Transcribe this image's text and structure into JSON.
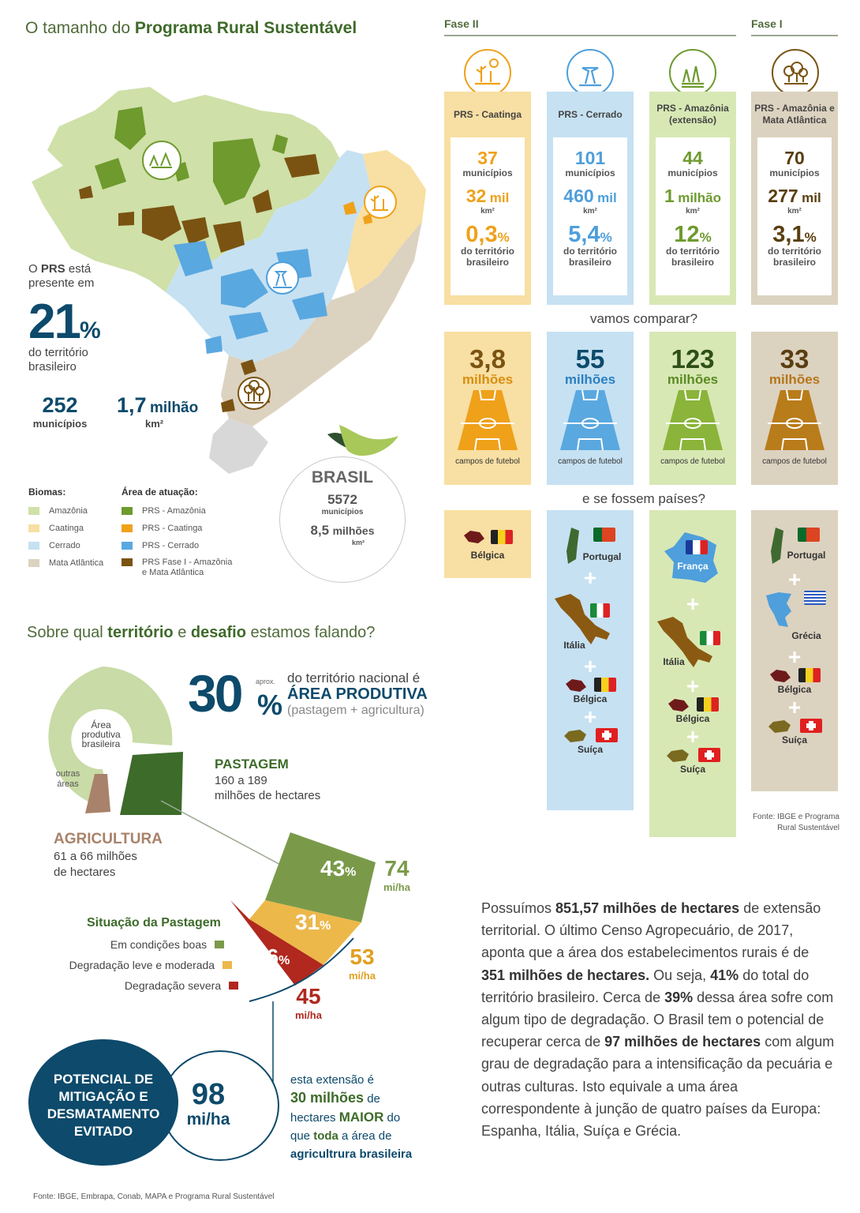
{
  "title": {
    "prefix": "O tamanho do ",
    "bold": "Programa Rural Sustentável"
  },
  "map_intro": {
    "line1": "O ",
    "prs": "PRS",
    "line1b": " está presente em",
    "pct_value": "21",
    "pct_sign": "%",
    "caption": "do território brasileiro"
  },
  "map_stats": {
    "municipios_num": "252",
    "municipios_label": "municípios",
    "area_num": "1,7",
    "area_unit": "milhão",
    "area_sub": "km²"
  },
  "legend": {
    "biomas_title": "Biomas:",
    "biomas": [
      {
        "label": "Amazônia",
        "color": "#cfe0a8"
      },
      {
        "label": "Caatinga",
        "color": "#f8dfa3"
      },
      {
        "label": "Cerrado",
        "color": "#c6e1f2"
      },
      {
        "label": "Mata Atlântica",
        "color": "#dcd2c0"
      }
    ],
    "area_title": "Área de atuação:",
    "areas": [
      {
        "label": "PRS - Amazônia",
        "color": "#6e9a2e"
      },
      {
        "label": "PRS - Caatinga",
        "color": "#efa11a"
      },
      {
        "label": "PRS - Cerrado",
        "color": "#5aa8e0"
      },
      {
        "label": "PRS Fase I - Amazônia",
        "label2": "e Mata Atlântica",
        "color": "#7a5312"
      }
    ]
  },
  "brasil": {
    "title": "BRASIL",
    "mun_num": "5572",
    "mun_label": "municípios",
    "area_num": "8,5",
    "area_unit": "milhões",
    "area_sub": "km²"
  },
  "phases": {
    "fase2": "Fase II",
    "fase1": "Fase I"
  },
  "columns": [
    {
      "name": "PRS - Caatinga",
      "color": "#efa11a",
      "bg": "#f8dfa3",
      "head_bg": "#f8dfa3",
      "mun": "37",
      "mun_label": "municípios",
      "area": "32",
      "area_unit": "mil",
      "area_sub": "km²",
      "pct": "0,3",
      "pct_sign": "%",
      "pct_label": "do território brasileiro",
      "field_num": "3,8",
      "field_unit": "milhões",
      "field_cap": "campos de futebol"
    },
    {
      "name": "PRS - Cerrado",
      "color": "#4e9fdb",
      "bg": "#c6e1f2",
      "head_bg": "#c6e1f2",
      "mun": "101",
      "mun_label": "municípios",
      "area": "460",
      "area_unit": "mil",
      "area_sub": "km²",
      "pct": "5,4",
      "pct_sign": "%",
      "pct_label": "do território brasileiro",
      "field_num": "55",
      "field_unit": "milhões",
      "field_cap": "campos de futebol"
    },
    {
      "name": "PRS - Amazônia (extensão)",
      "color": "#6e9a2e",
      "bg": "#d8e8b5",
      "head_bg": "#d8e8b5",
      "mun": "44",
      "mun_label": "municípios",
      "area": "1",
      "area_unit": "milhão",
      "area_sub": "km²",
      "pct": "12",
      "pct_sign": "%",
      "pct_label": "do território brasileiro",
      "field_num": "123",
      "field_unit": "milhões",
      "field_cap": "campos de futebol"
    },
    {
      "name": "PRS - Amazônia e Mata Atlântica",
      "color": "#7a5312",
      "bg": "#dcd2c0",
      "head_bg": "#dcd2c0",
      "mun": "70",
      "mun_label": "municípios",
      "area": "277",
      "area_unit": "mil",
      "area_sub": "km²",
      "pct": "3,1",
      "pct_sign": "%",
      "pct_label": "do território brasileiro",
      "field_num": "33",
      "field_unit": "milhões",
      "field_cap": "campos de futebol"
    }
  ],
  "questions": {
    "compare": "vamos comparar?",
    "countries": "e se fossem países?"
  },
  "countries": {
    "c1": [
      "Bélgica"
    ],
    "c2": [
      "Portugal",
      "Itália",
      "Bélgica",
      "Suíça"
    ],
    "c3": [
      "França",
      "Itália",
      "Bélgica",
      "Suíça"
    ],
    "c4": [
      "Portugal",
      "Grécia",
      "Bélgica",
      "Suíça"
    ],
    "plus": "+"
  },
  "source_top": "Fonte: IBGE e Programa Rural Sustentável",
  "sec2": {
    "prefix": "Sobre qual ",
    "b1": "território",
    "mid": " e ",
    "b2": "desafio",
    "suffix": " estamos falando?"
  },
  "area_prod": {
    "pct": "30",
    "pct_sign": "%",
    "aprox": "aprox.",
    "line1": "do território nacional é",
    "line2": "ÁREA PRODUTIVA",
    "line3": "(pastagem + agricultura)"
  },
  "donut": {
    "center": "Área produtiva brasileira",
    "outras": "outras áreas"
  },
  "pastagem": {
    "title": "PASTAGEM",
    "line1": "160 a 189",
    "line2": "milhões de hectares"
  },
  "agricultura": {
    "title": "AGRICULTURA",
    "line1": "61 a  66 milhões",
    "line2": "de hectares"
  },
  "situacao": {
    "title": "Situação da Pastagem",
    "items": [
      {
        "label": "Em condições boas",
        "color": "#7a9a4a"
      },
      {
        "label": "Degradação leve e moderada",
        "color": "#ecb84a"
      },
      {
        "label": "Degradação severa",
        "color": "#b0281e"
      }
    ]
  },
  "fan": {
    "p1": "43",
    "p2": "31",
    "p3": "26",
    "sign": "%",
    "v1": "74",
    "v2": "53",
    "v3": "45",
    "unit": "mi/ha"
  },
  "mitig": {
    "line1": "POTENCIAL DE",
    "line2": "MITIGAÇÃO E",
    "line3": "DESMATAMENTO",
    "line4": "EVITADO",
    "num": "98",
    "unit": "mi/ha"
  },
  "extensao": {
    "a": "esta extensão é",
    "b": "30 milhões",
    "c": " de",
    "d": "hectares ",
    "e": "MAIOR",
    "f": " do",
    "g": "que ",
    "h": "toda",
    "i": " a área de",
    "j": "agricultrura brasileira"
  },
  "text": {
    "t1": "Possuímos ",
    "b1": "851,57 milhões de hectares",
    "t2": " de extensão territorial. O último Censo Agropecuário, de 2017, aponta que a área dos estabelecimentos rurais é de ",
    "b2": "351 milhões de hectares.",
    "t3": " Ou seja, ",
    "b3": "41%",
    "t4": " do total do território brasileiro. Cerca de ",
    "b4": "39%",
    "t5": " dessa área sofre com algum tipo de degradação. O Brasil tem o potencial de recuperar cerca de ",
    "b5": "97 milhões de hectares",
    "t6": " com algum grau de degradação para a intensificação da pecuária e outras culturas. Isto equivale a uma área correspondente à junção de quatro países da Europa:  Espanha, Itália, Suíça e Grécia."
  },
  "source_bottom": "Fonte: IBGE, Embrapa, Conab, MAPA  e Programa Rural Sustentável"
}
